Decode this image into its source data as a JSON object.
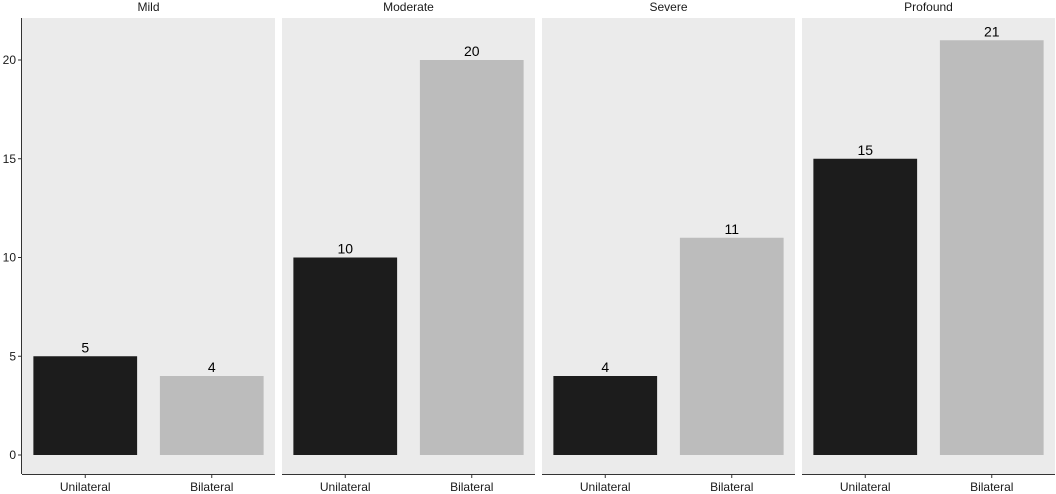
{
  "chart_data": {
    "type": "bar",
    "faceted": true,
    "facet_layout": "1 row x 4 columns",
    "categories": [
      "Unilateral",
      "Bilateral"
    ],
    "colors": {
      "Unilateral": "#1c1c1c",
      "Bilateral": "#bcbcbc",
      "panel_background": "#ebebeb",
      "axis": "#333333"
    },
    "ylim": [
      0,
      22
    ],
    "y_ticks": [
      0,
      5,
      10,
      15,
      20
    ],
    "grid": false,
    "data_labels": true,
    "panels": [
      {
        "title": "Mild",
        "values": [
          5,
          4
        ]
      },
      {
        "title": "Moderate",
        "values": [
          10,
          20
        ]
      },
      {
        "title": "Severe",
        "values": [
          4,
          11
        ]
      },
      {
        "title": "Profound",
        "values": [
          15,
          21
        ]
      }
    ]
  }
}
